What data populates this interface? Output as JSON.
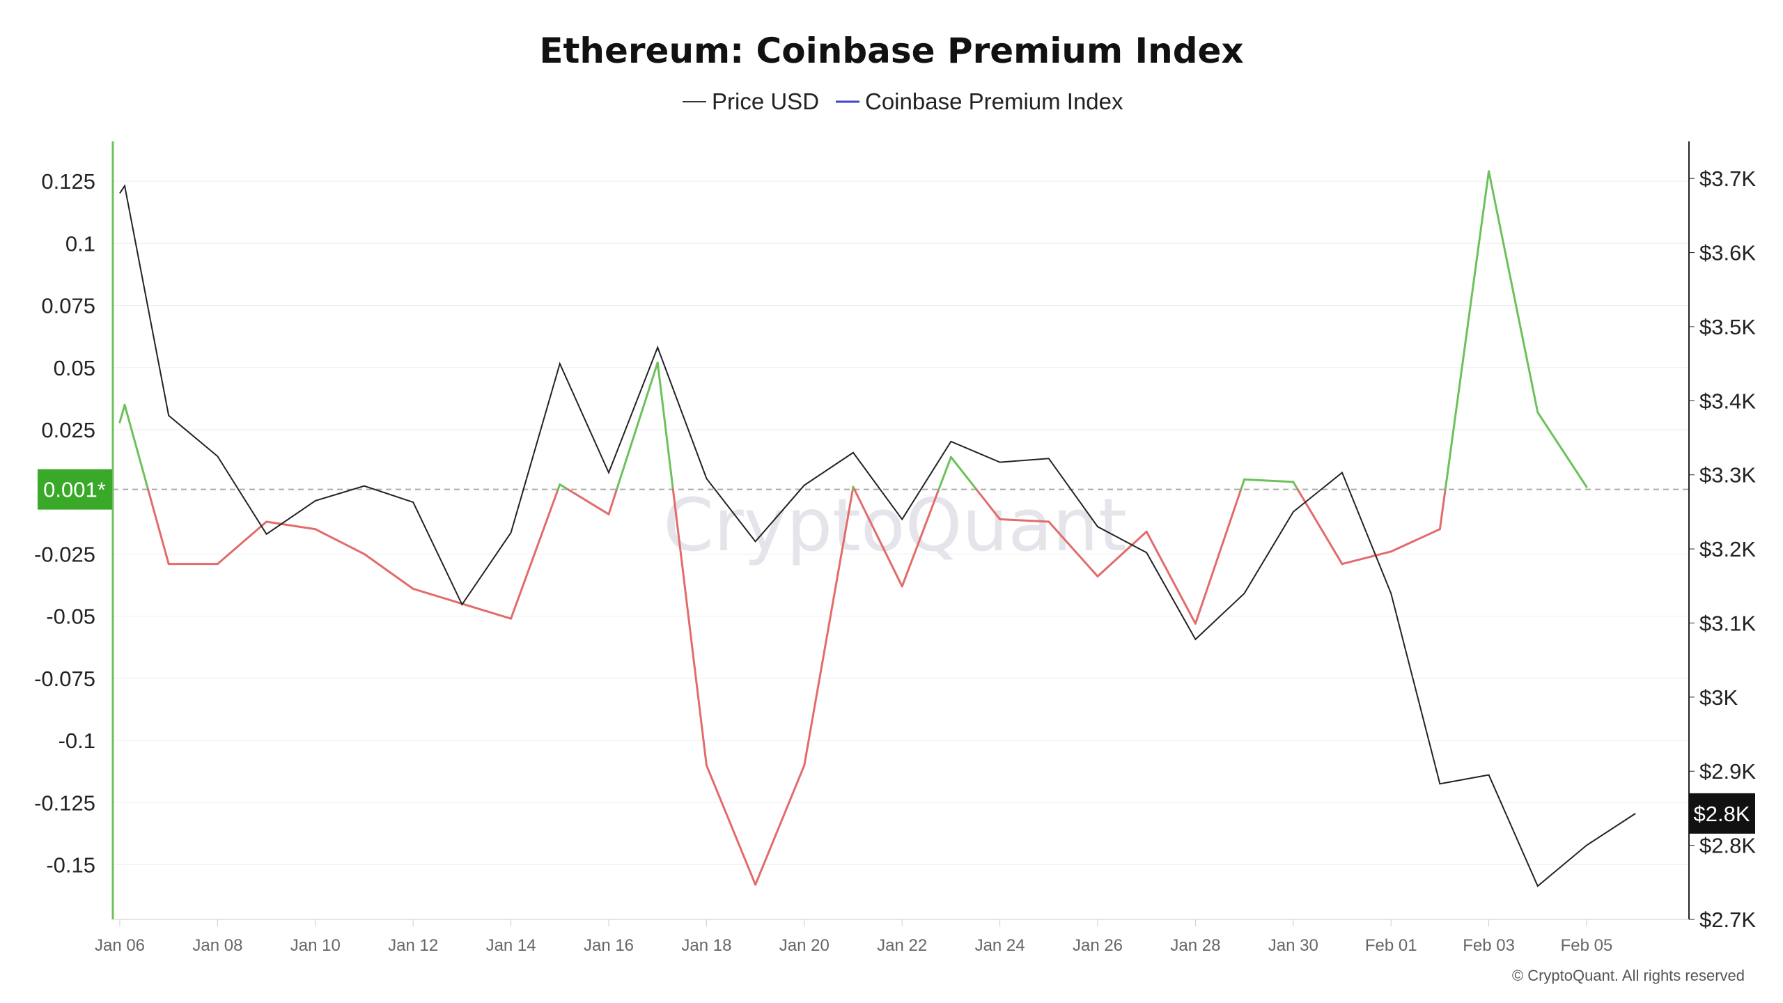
{
  "chart_data": {
    "type": "line",
    "title": "Ethereum: Coinbase Premium Index",
    "legend": [
      {
        "name": "Price USD",
        "color": "#333333"
      },
      {
        "name": "Coinbase Premium Index",
        "color": "#4040d0"
      }
    ],
    "legend_position": "top-center",
    "x_labels": [
      "Jan 06",
      "Jan 08",
      "Jan 10",
      "Jan 12",
      "Jan 14",
      "Jan 16",
      "Jan 18",
      "Jan 20",
      "Jan 22",
      "Jan 24",
      "Jan 26",
      "Jan 28",
      "Jan 30",
      "Feb 01",
      "Feb 03",
      "Feb 05"
    ],
    "left_axis": {
      "ticks": [
        0.125,
        0.1,
        0.075,
        0.05,
        0.025,
        -0.025,
        -0.05,
        -0.075,
        -0.1,
        -0.125,
        -0.15
      ],
      "tick_labels": [
        "0.125",
        "0.1",
        "0.075",
        "0.05",
        "0.025",
        "-0.025",
        "-0.05",
        "-0.075",
        "-0.1",
        "-0.125",
        "-0.15"
      ],
      "range": [
        -0.172,
        0.141
      ]
    },
    "right_axis": {
      "ticks": [
        3700,
        3600,
        3500,
        3400,
        3300,
        3200,
        3100,
        3000,
        2900,
        2800,
        2700
      ],
      "tick_labels": [
        "$3.7K",
        "$3.6K",
        "$3.5K",
        "$3.4K",
        "$3.3K",
        "$3.2K",
        "$3.1K",
        "$3K",
        "$2.9K",
        "$2.8K",
        "$2.7K"
      ],
      "range": [
        2700,
        3750
      ]
    },
    "reference_line": {
      "value": 0.001,
      "label": "0.001*",
      "color": "#3aa829"
    },
    "current_price_label": "$2.8K",
    "series": [
      {
        "name": "Coinbase Premium Index",
        "axis": "left",
        "positive_color": "#6cc15a",
        "negative_color": "#e36b6b",
        "x": [
          0,
          0.1,
          1,
          2,
          3,
          4,
          5,
          6,
          7,
          8,
          9,
          10,
          11,
          12,
          13,
          14,
          15,
          16,
          17,
          18,
          19,
          20,
          21,
          22,
          23,
          24,
          25,
          26,
          27,
          28,
          29,
          30
        ],
        "values": [
          0.028,
          0.035,
          -0.029,
          -0.029,
          -0.012,
          -0.015,
          -0.025,
          -0.039,
          -0.045,
          -0.051,
          0.003,
          -0.009,
          0.052,
          -0.11,
          -0.158,
          -0.11,
          0.002,
          -0.038,
          0.014,
          -0.011,
          -0.012,
          -0.034,
          -0.016,
          -0.053,
          0.005,
          0.004,
          -0.029,
          -0.024,
          -0.015,
          0.129,
          0.032,
          0.002
        ]
      },
      {
        "name": "Price USD",
        "axis": "right",
        "color": "#222222",
        "x": [
          0,
          0.1,
          1,
          2,
          3,
          4,
          5,
          6,
          7,
          8,
          9,
          10,
          11,
          12,
          13,
          14,
          15,
          16,
          17,
          18,
          19,
          20,
          21,
          22,
          23,
          24,
          25,
          26,
          27,
          28,
          29,
          30,
          31
        ],
        "values": [
          3680,
          3690,
          3380,
          3325,
          3220,
          3265,
          3285,
          3263,
          3125,
          3222,
          3450,
          3303,
          3472,
          3295,
          3210,
          3286,
          3330,
          3240,
          3345,
          3317,
          3322,
          3230,
          3195,
          3078,
          3140,
          3250,
          3303,
          3140,
          2883,
          2895,
          2745,
          2800,
          2843
        ]
      }
    ],
    "watermark": "CryptoQuant",
    "copyright": "© CryptoQuant. All rights reserved"
  }
}
